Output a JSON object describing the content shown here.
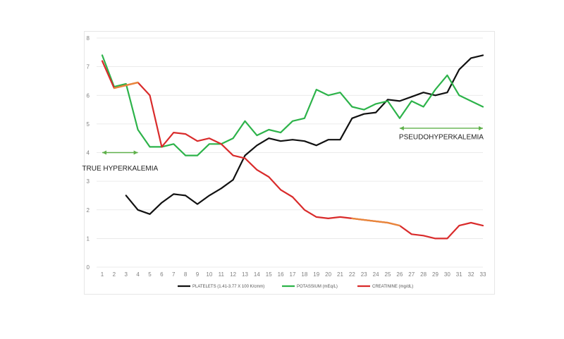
{
  "chart_data": {
    "type": "line",
    "title": "",
    "xlabel": "",
    "ylabel": "",
    "x": [
      1,
      2,
      3,
      4,
      5,
      6,
      7,
      8,
      9,
      10,
      11,
      12,
      13,
      14,
      15,
      16,
      17,
      18,
      19,
      20,
      21,
      22,
      23,
      24,
      25,
      26,
      27,
      28,
      29,
      30,
      31,
      32,
      33
    ],
    "ylim": [
      0,
      8
    ],
    "yticks": [
      0,
      1,
      2,
      3,
      4,
      5,
      6,
      7,
      8
    ],
    "grid": true,
    "legend_position": "bottom",
    "series": [
      {
        "name": "PLATELETS (1.41-3.77 X 100 K/cmm)",
        "color": "#111111",
        "values": [
          null,
          null,
          2.5,
          2.0,
          1.85,
          2.25,
          2.55,
          2.5,
          2.2,
          2.5,
          2.75,
          3.05,
          3.9,
          4.25,
          4.5,
          4.4,
          4.45,
          4.4,
          4.25,
          4.45,
          4.45,
          5.2,
          5.35,
          5.4,
          5.85,
          5.8,
          5.95,
          6.1,
          6.0,
          6.1,
          6.9,
          7.3,
          7.4
        ]
      },
      {
        "name": "POTASSIUM (mEq/L)",
        "color": "#2db34a",
        "values": [
          7.4,
          6.3,
          6.4,
          4.8,
          4.2,
          4.2,
          4.3,
          3.9,
          3.9,
          4.3,
          4.3,
          4.5,
          5.1,
          4.6,
          4.8,
          4.7,
          5.1,
          5.2,
          6.2,
          6.0,
          6.1,
          5.6,
          5.5,
          5.7,
          5.8,
          5.2,
          5.8,
          5.6,
          6.2,
          6.7,
          6.0,
          5.8,
          5.6
        ]
      },
      {
        "name": "CREATININE (mg/dL)",
        "color": "#d92b2b",
        "values": [
          7.2,
          6.25,
          6.35,
          6.45,
          6.0,
          4.2,
          4.7,
          4.65,
          4.4,
          4.5,
          4.3,
          3.9,
          3.8,
          3.4,
          3.15,
          2.7,
          2.45,
          2.0,
          1.75,
          1.7,
          1.75,
          1.7,
          1.65,
          1.6,
          1.55,
          1.45,
          1.15,
          1.1,
          1.0,
          1.0,
          1.45,
          1.55,
          1.45
        ]
      }
    ],
    "highlight_segments": [
      {
        "series": "CREATININE (mg/dL)",
        "from_x": 2,
        "to_x": 4,
        "color": "#e8873a"
      },
      {
        "series": "CREATININE (mg/dL)",
        "from_x": 22,
        "to_x": 26,
        "color": "#e8873a"
      }
    ],
    "annotations": [
      {
        "text": "TRUE HYPERKALEMIA",
        "arrow_from_x": 1,
        "arrow_to_x": 4,
        "arrow_y": 4.0,
        "text_y": 3.25,
        "color": "#5fb04a"
      },
      {
        "text": "PSEUDOHYPERKALEMIA",
        "arrow_from_x": 26,
        "arrow_to_x": 33,
        "arrow_y": 4.85,
        "text_y": 4.35,
        "color": "#5fb04a"
      }
    ]
  }
}
